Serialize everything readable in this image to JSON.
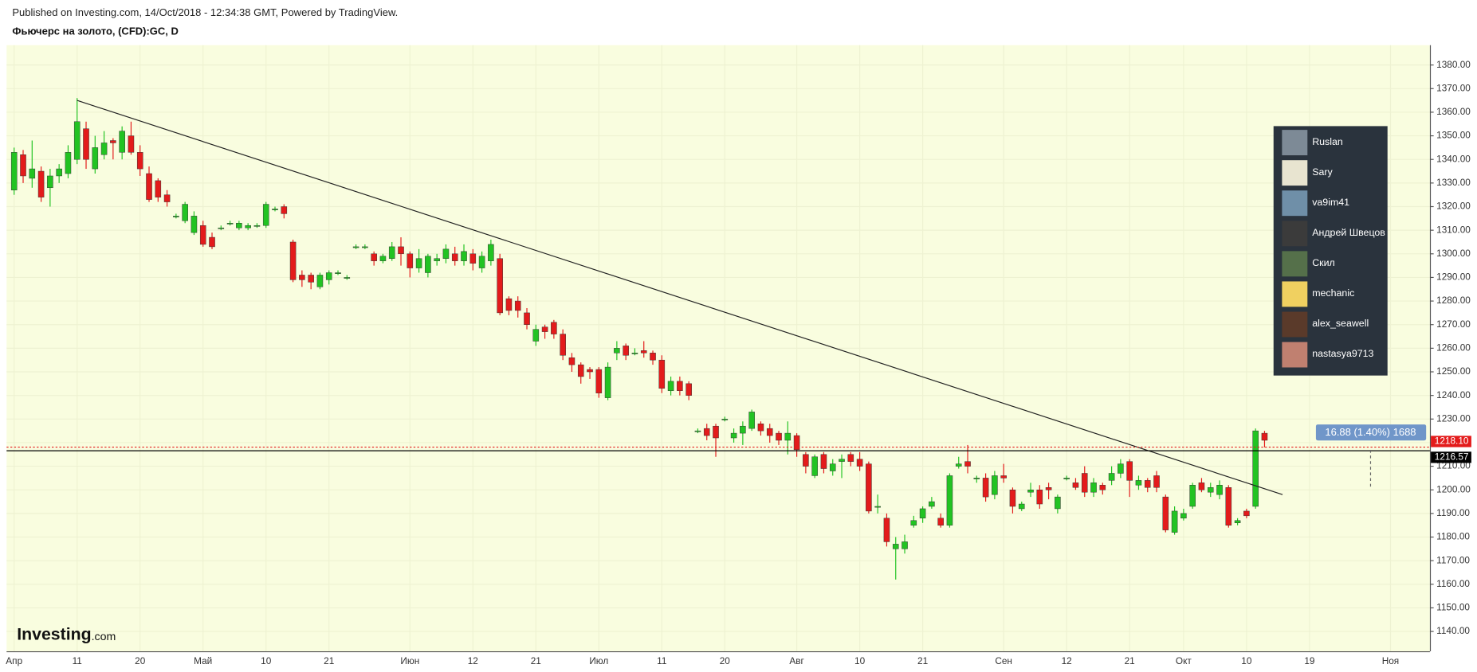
{
  "header": {
    "published": "Published on Investing.com, 14/Oct/2018 - 12:34:38 GMT, Powered by TradingView.",
    "symbol": "Фьючерс на золото, (CFD):GC, D"
  },
  "chart_data": {
    "type": "candlestick",
    "categories": [
      "Апр",
      null,
      null,
      null,
      null,
      null,
      null,
      "11",
      null,
      null,
      null,
      null,
      null,
      null,
      "20",
      null,
      null,
      null,
      null,
      null,
      null,
      "Май",
      null,
      null,
      null,
      null,
      null,
      null,
      "10",
      null,
      null,
      null,
      null,
      null,
      null,
      "21",
      null,
      null,
      null,
      null,
      null,
      null,
      null,
      null,
      "Июн",
      null,
      null,
      null,
      null,
      null,
      null,
      "12",
      null,
      null,
      null,
      null,
      null,
      null,
      "21",
      null,
      null,
      null,
      null,
      null,
      null,
      "Июл",
      null,
      null,
      null,
      null,
      null,
      null,
      "11",
      null,
      null,
      null,
      null,
      null,
      null,
      "20",
      null,
      null,
      null,
      null,
      null,
      null,
      null,
      "Авг",
      null,
      null,
      null,
      null,
      null,
      null,
      "10",
      null,
      null,
      null,
      null,
      null,
      null,
      "21",
      null,
      null,
      null,
      null,
      null,
      null,
      null,
      null,
      "Сен",
      null,
      null,
      null,
      null,
      null,
      null,
      "12",
      null,
      null,
      null,
      null,
      null,
      null,
      "21",
      null,
      null,
      null,
      null,
      null,
      "Окт",
      null,
      null,
      null,
      null,
      null,
      null,
      "10",
      null,
      null,
      null,
      null,
      null,
      null,
      "19",
      null,
      null,
      null,
      null,
      null,
      null,
      null,
      null,
      "Ноя",
      null,
      null,
      null,
      null
    ],
    "open": [
      1327,
      1342,
      1332,
      1335,
      1328,
      1333,
      1334,
      1340,
      1353,
      1336,
      1342,
      1348,
      1343,
      1350,
      1343,
      1334,
      1331,
      1325,
      1316,
      1314,
      1309,
      1312,
      1307,
      1311,
      1313,
      1311,
      1311,
      1312,
      1312,
      1319,
      1320,
      1305,
      1291,
      1291,
      1286,
      1289,
      1292,
      1290,
      1303,
      1303,
      1300,
      1297,
      1298,
      1303,
      1300,
      1294,
      1292,
      1297,
      1298,
      1300,
      1297,
      1300,
      1294,
      1297,
      1298,
      1281,
      1280,
      1275,
      1263,
      1269,
      1271,
      1266,
      1256,
      1253,
      1251,
      1251,
      1239,
      1258,
      1261,
      1258,
      1259,
      1258,
      1255,
      1242,
      1246,
      1245,
      1225,
      1226,
      1227,
      1230,
      1222,
      1224,
      1226,
      1228,
      1226,
      1224,
      1221,
      1223,
      1215,
      1206,
      1215,
      1208,
      1212,
      1215,
      1213,
      1211,
      1193,
      1188,
      1175,
      1175,
      1185,
      1188,
      1193,
      1188,
      1185,
      1210,
      1212,
      1205,
      1205,
      1198,
      1206,
      1200,
      1192,
      1199,
      1200,
      1201,
      1192,
      1205,
      1203,
      1207,
      1199,
      1202,
      1204,
      1207,
      1212,
      1202,
      1204,
      1206,
      1197,
      1182,
      1188,
      1193,
      1203,
      1199,
      1198,
      1201,
      1186,
      1191,
      1193,
      1224,
      null,
      null,
      null,
      null,
      null,
      null,
      null,
      null,
      null,
      null,
      null,
      null,
      null,
      null,
      null,
      null,
      null,
      null
    ],
    "high": [
      1345,
      1344,
      1348,
      1337,
      1336,
      1338,
      1346,
      1366,
      1356,
      1350,
      1352,
      1349,
      1354,
      1356,
      1346,
      1337,
      1332,
      1327,
      1317,
      1322,
      1318,
      1314,
      1309,
      1312,
      1314,
      1314,
      1313,
      1313,
      1322,
      1320,
      1321,
      1306,
      1293,
      1292,
      1292,
      1293,
      1293,
      1291,
      1304,
      1304,
      1301,
      1300,
      1305,
      1307,
      1301,
      1302,
      1300,
      1300,
      1304,
      1303,
      1304,
      1302,
      1301,
      1306,
      1300,
      1282,
      1282,
      1277,
      1270,
      1270,
      1272,
      1268,
      1258,
      1254,
      1252,
      1252,
      1254,
      1263,
      1262,
      1260,
      1263,
      1259,
      1257,
      1248,
      1248,
      1246,
      1226,
      1228,
      1228,
      1231,
      1226,
      1229,
      1234,
      1229,
      1228,
      1225,
      1229,
      1224,
      1216,
      1215,
      1216,
      1213,
      1215,
      1216,
      1216,
      1212,
      1198,
      1190,
      1180,
      1181,
      1189,
      1193,
      1197,
      1190,
      1207,
      1214,
      1219,
      1206,
      1207,
      1208,
      1211,
      1201,
      1195,
      1203,
      1202,
      1203,
      1198,
      1206,
      1205,
      1210,
      1205,
      1203,
      1210,
      1213,
      1213,
      1206,
      1205,
      1208,
      1198,
      1193,
      1192,
      1203,
      1205,
      1203,
      1204,
      1202,
      1188,
      1192,
      1226,
      1225,
      null,
      null,
      null,
      null,
      null,
      null,
      null,
      null,
      null,
      null,
      null,
      null,
      null,
      null,
      null,
      null,
      null,
      null
    ],
    "low": [
      1325,
      1330,
      1328,
      1322,
      1320,
      1330,
      1332,
      1338,
      1336,
      1334,
      1340,
      1340,
      1340,
      1342,
      1333,
      1322,
      1322,
      1320,
      1315,
      1313,
      1308,
      1303,
      1302,
      1310,
      1312,
      1310,
      1310,
      1311,
      1311,
      1318,
      1315,
      1288,
      1286,
      1285,
      1285,
      1287,
      1291,
      1289,
      1302,
      1302,
      1295,
      1296,
      1297,
      1295,
      1290,
      1292,
      1290,
      1295,
      1296,
      1295,
      1295,
      1293,
      1292,
      1295,
      1274,
      1274,
      1273,
      1268,
      1261,
      1264,
      1264,
      1255,
      1250,
      1245,
      1247,
      1239,
      1238,
      1255,
      1255,
      1257,
      1256,
      1253,
      1241,
      1240,
      1240,
      1238,
      1224,
      1221,
      1214,
      1229,
      1220,
      1219,
      1225,
      1223,
      1220,
      1219,
      1215,
      1214,
      1207,
      1205,
      1207,
      1206,
      1205,
      1210,
      1208,
      1190,
      1190,
      1176,
      1162,
      1173,
      1184,
      1186,
      1192,
      1184,
      1184,
      1209,
      1207,
      1203,
      1195,
      1196,
      1203,
      1190,
      1191,
      1197,
      1192,
      1196,
      1190,
      1204,
      1200,
      1197,
      1197,
      1198,
      1202,
      1205,
      1197,
      1200,
      1199,
      1199,
      1182,
      1181,
      1187,
      1192,
      1199,
      1197,
      1196,
      1184,
      1185,
      1188,
      1192,
      1218,
      null,
      null,
      null,
      null,
      null,
      null,
      null,
      null,
      null,
      null,
      null,
      null,
      null,
      null,
      null,
      null,
      null,
      null
    ],
    "close": [
      1343,
      1333,
      1336,
      1324,
      1333,
      1336,
      1343,
      1356,
      1340,
      1345,
      1347,
      1347,
      1352,
      1343,
      1336,
      1323,
      1324,
      1322,
      1316,
      1321,
      1316,
      1304,
      1303,
      1311,
      1313,
      1313,
      1312,
      1312,
      1321,
      1319,
      1317,
      1289,
      1289,
      1288,
      1291,
      1292,
      1292,
      1290,
      1303,
      1303,
      1297,
      1299,
      1303,
      1300,
      1294,
      1298,
      1299,
      1298,
      1302,
      1297,
      1301,
      1296,
      1299,
      1304,
      1275,
      1276,
      1276,
      1270,
      1268,
      1267,
      1266,
      1257,
      1253,
      1248,
      1250,
      1241,
      1252,
      1260,
      1257,
      1258,
      1258,
      1255,
      1243,
      1246,
      1242,
      1240,
      1225,
      1223,
      1222,
      1230,
      1224,
      1227,
      1233,
      1225,
      1223,
      1221,
      1224,
      1217,
      1210,
      1214,
      1209,
      1211,
      1213,
      1212,
      1210,
      1191,
      1193,
      1178,
      1177,
      1178,
      1187,
      1192,
      1195,
      1185,
      1206,
      1211,
      1210,
      1205,
      1197,
      1206,
      1205,
      1193,
      1194,
      1200,
      1194,
      1200,
      1197,
      1205,
      1201,
      1199,
      1203,
      1200,
      1207,
      1211,
      1204,
      1204,
      1201,
      1201,
      1183,
      1191,
      1190,
      1202,
      1200,
      1201,
      1202,
      1185,
      1187,
      1189,
      1225,
      1221,
      null,
      null,
      null,
      null,
      null,
      null,
      null,
      null,
      null,
      null,
      null,
      null,
      null,
      null,
      null,
      null,
      null,
      null
    ],
    "up_color": "#22c322",
    "down_color": "#e31b1b",
    "ylim": [
      1131.6,
      1388.4
    ],
    "yticks": [
      {
        "value": 1140,
        "label": "1140.00"
      },
      {
        "value": 1150,
        "label": "1150.00"
      },
      {
        "value": 1160,
        "label": "1160.00"
      },
      {
        "value": 1170,
        "label": "1170.00"
      },
      {
        "value": 1180,
        "label": "1180.00"
      },
      {
        "value": 1190,
        "label": "1190.00"
      },
      {
        "value": 1200,
        "label": "1200.00"
      },
      {
        "value": 1210,
        "label": "1210.00"
      },
      {
        "value": 1220,
        "label": "1220.00"
      },
      {
        "value": 1230,
        "label": "1230.00"
      },
      {
        "value": 1240,
        "label": "1240.00"
      },
      {
        "value": 1250,
        "label": "1250.00"
      },
      {
        "value": 1260,
        "label": "1260.00"
      },
      {
        "value": 1270,
        "label": "1270.00"
      },
      {
        "value": 1280,
        "label": "1280.00"
      },
      {
        "value": 1290,
        "label": "1290.00"
      },
      {
        "value": 1300,
        "label": "1300.00"
      },
      {
        "value": 1310,
        "label": "1310.00"
      },
      {
        "value": 1320,
        "label": "1320.00"
      },
      {
        "value": 1330,
        "label": "1330.00"
      },
      {
        "value": 1340,
        "label": "1340.00"
      },
      {
        "value": 1350,
        "label": "1350.00"
      },
      {
        "value": 1360,
        "label": "1360.00"
      },
      {
        "value": 1370,
        "label": "1370.00"
      },
      {
        "value": 1380,
        "label": "1380.00"
      }
    ],
    "grid": true,
    "trend_line": {
      "x": [
        7,
        141
      ],
      "y": [
        1365,
        1198
      ]
    },
    "price_lines": [
      {
        "value": 1218.1,
        "label": "1218.10",
        "color": "#e31b1b"
      },
      {
        "value": 1216.57,
        "label": "1216.57",
        "color": "#000000"
      }
    ],
    "measure_label": "16.88 (1.40%) 1688"
  },
  "watchers": [
    "Ruslan",
    "Sary",
    "va9im41",
    "Андрей Швецов",
    "Скил",
    "mechanic",
    "alex_seawell",
    "nastasya9713"
  ],
  "logo": {
    "brand": "Investing",
    "suffix": ".com"
  }
}
